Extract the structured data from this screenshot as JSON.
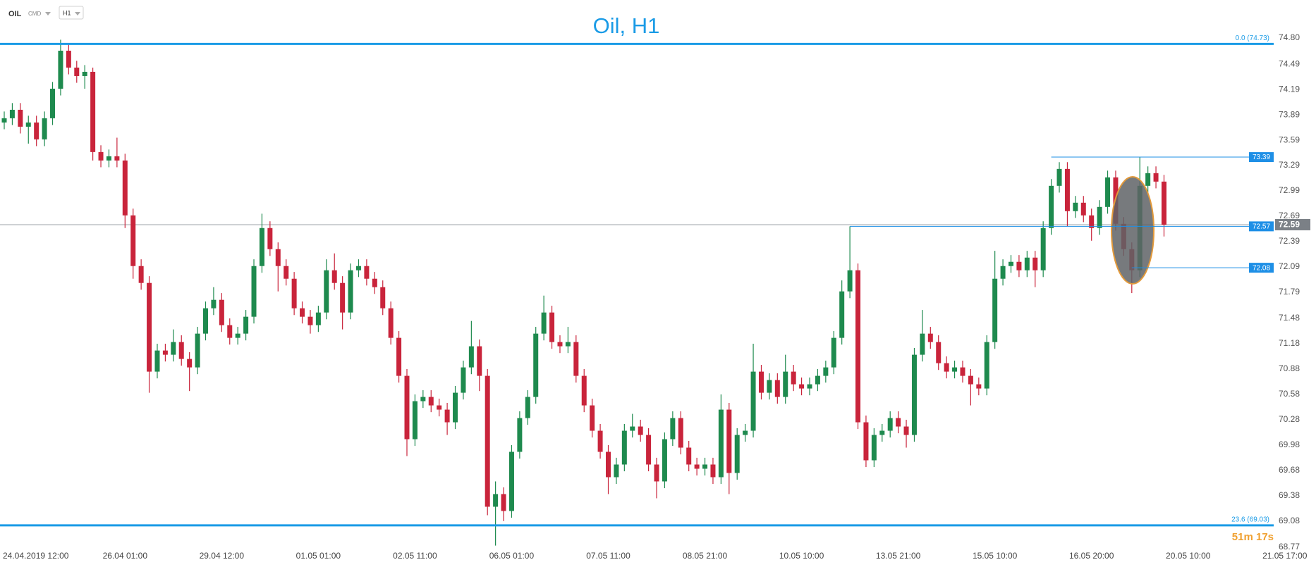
{
  "chart_data": {
    "type": "candlestick",
    "title": "Oil, H1",
    "symbol": "OIL",
    "symbol_type": "CMD",
    "timeframe": "H1",
    "up_color": "#1e8a4e",
    "down_color": "#c9243b",
    "grid": false,
    "ylim": [
      68.77,
      74.8
    ],
    "yticks": [
      {
        "value": 74.8,
        "label": "74.80"
      },
      74.49,
      74.19,
      73.89,
      73.59,
      73.29,
      72.99,
      72.69,
      72.39,
      72.09,
      71.79,
      71.48,
      71.18,
      70.88,
      70.58,
      70.28,
      69.98,
      69.68,
      69.38,
      69.08,
      68.77
    ],
    "levels": [
      {
        "value": 74.73,
        "label": "0.0 (74.73)"
      },
      {
        "value": 69.03,
        "label": "23.6 (69.03)"
      }
    ],
    "level_color": "#1a9be6",
    "price_markers": [
      73.39,
      72.57,
      72.08
    ],
    "current_price": 72.59,
    "countdown": "51m 17s",
    "categories": [
      null,
      null,
      null,
      "24.04.2019 12:00",
      null,
      null,
      null,
      null,
      null,
      null,
      null,
      null,
      null,
      null,
      null,
      "26.04 01:00",
      null,
      null,
      null,
      null,
      null,
      null,
      null,
      null,
      null,
      null,
      null,
      "29.04 12:00",
      null,
      null,
      null,
      null,
      null,
      null,
      null,
      null,
      null,
      null,
      null,
      "01.05 01:00",
      null,
      null,
      null,
      null,
      null,
      null,
      null,
      null,
      null,
      null,
      null,
      "02.05 11:00",
      null,
      null,
      null,
      null,
      null,
      null,
      null,
      null,
      null,
      null,
      null,
      "06.05 01:00",
      null,
      null,
      null,
      null,
      null,
      null,
      null,
      null,
      null,
      null,
      null,
      "07.05 11:00",
      null,
      null,
      null,
      null,
      null,
      null,
      null,
      null,
      null,
      null,
      null,
      "08.05 21:00",
      null,
      null,
      null,
      null,
      null,
      null,
      null,
      null,
      null,
      null,
      null,
      "10.05 10:00",
      null,
      null,
      null,
      null,
      null,
      null,
      null,
      null,
      null,
      null,
      null,
      "13.05 21:00",
      null,
      null,
      null,
      null,
      null,
      null,
      null,
      null,
      null,
      null,
      null,
      "15.05 10:00",
      null,
      null,
      null,
      null,
      null,
      null,
      null,
      null,
      null,
      null,
      null,
      "16.05 20:00",
      null,
      null,
      null,
      null,
      null,
      null,
      null,
      null,
      null,
      null,
      null,
      "20.05 10:00",
      null,
      null,
      null,
      null,
      null,
      null,
      null,
      null,
      null,
      null,
      null,
      "21.05 17:00"
    ],
    "open": [
      73.8,
      73.85,
      73.95,
      73.75,
      73.8,
      73.6,
      73.85,
      74.2,
      74.65,
      74.45,
      74.35,
      74.4,
      73.45,
      73.35,
      73.4,
      73.35,
      72.7,
      72.1,
      71.9,
      70.85,
      71.1,
      71.05,
      71.2,
      71.0,
      70.9,
      71.3,
      71.6,
      71.7,
      71.4,
      71.25,
      71.3,
      71.5,
      72.1,
      72.55,
      72.3,
      72.1,
      71.95,
      71.6,
      71.5,
      71.4,
      71.55,
      72.05,
      71.9,
      71.55,
      72.05,
      72.1,
      71.95,
      71.85,
      71.6,
      71.25,
      70.8,
      70.05,
      70.5,
      70.55,
      70.45,
      70.4,
      70.25,
      70.6,
      70.9,
      71.15,
      70.8,
      69.25,
      69.4,
      69.2,
      69.9,
      70.3,
      70.55,
      71.3,
      71.55,
      71.2,
      71.15,
      71.2,
      70.8,
      70.45,
      70.15,
      69.9,
      69.6,
      69.75,
      70.15,
      70.2,
      70.1,
      69.75,
      69.55,
      70.05,
      70.3,
      69.95,
      69.75,
      69.7,
      69.75,
      69.6,
      70.4,
      69.65,
      70.1,
      70.15,
      70.85,
      70.6,
      70.75,
      70.55,
      70.85,
      70.7,
      70.65,
      70.7,
      70.8,
      70.9,
      71.25,
      71.8,
      72.05,
      70.25,
      69.8,
      70.1,
      70.15,
      70.3,
      70.2,
      70.1,
      71.05,
      71.3,
      71.2,
      70.95,
      70.85,
      70.9,
      70.8,
      70.7,
      70.65,
      71.2,
      71.95,
      72.1,
      72.15,
      72.05,
      72.2,
      72.05,
      72.55,
      73.05,
      73.25,
      72.75,
      72.85,
      72.7,
      72.55,
      72.8,
      73.15,
      72.6,
      72.3,
      72.05,
      73.05,
      73.2,
      73.1,
      null,
      null,
      null,
      null,
      null,
      null,
      null,
      null,
      null,
      null,
      null,
      null,
      null,
      null,
      null
    ],
    "high": [
      73.93,
      74.03,
      74.03,
      73.88,
      73.88,
      73.93,
      74.28,
      74.78,
      74.73,
      74.53,
      74.48,
      74.45,
      73.53,
      73.48,
      73.62,
      73.43,
      72.78,
      72.18,
      71.98,
      71.18,
      71.18,
      71.35,
      71.28,
      71.08,
      71.38,
      71.68,
      71.85,
      71.78,
      71.48,
      71.38,
      71.58,
      72.18,
      72.72,
      72.63,
      72.38,
      72.18,
      72.03,
      71.68,
      71.58,
      71.63,
      72.18,
      72.25,
      71.98,
      72.13,
      72.18,
      72.18,
      72.03,
      71.93,
      71.68,
      71.33,
      70.88,
      70.58,
      70.63,
      70.63,
      70.53,
      70.48,
      70.68,
      70.98,
      71.45,
      71.23,
      70.88,
      69.55,
      69.48,
      69.98,
      70.38,
      70.63,
      71.38,
      71.75,
      71.63,
      71.28,
      71.38,
      71.28,
      70.88,
      70.53,
      70.23,
      69.98,
      69.83,
      70.23,
      70.35,
      70.28,
      70.18,
      69.83,
      70.13,
      70.38,
      70.38,
      70.03,
      69.83,
      69.83,
      69.83,
      70.58,
      70.48,
      70.18,
      70.23,
      71.18,
      70.93,
      70.83,
      70.83,
      71.05,
      70.93,
      70.78,
      70.78,
      70.88,
      70.98,
      71.33,
      71.93,
      72.57,
      72.13,
      70.33,
      70.18,
      70.23,
      70.38,
      70.38,
      70.28,
      71.13,
      71.58,
      71.38,
      71.28,
      71.03,
      70.98,
      70.98,
      70.88,
      70.78,
      71.28,
      72.28,
      72.18,
      72.23,
      72.23,
      72.28,
      72.28,
      72.63,
      73.13,
      73.33,
      73.33,
      72.93,
      72.93,
      72.78,
      72.88,
      73.23,
      73.23,
      72.68,
      72.38,
      73.39,
      73.28,
      73.28,
      73.18,
      null,
      null,
      null,
      null,
      null,
      null,
      null,
      null,
      null,
      null,
      null,
      null,
      null,
      null,
      null
    ],
    "low": [
      73.72,
      73.77,
      73.67,
      73.55,
      73.52,
      73.52,
      73.77,
      74.12,
      74.37,
      74.27,
      74.2,
      73.35,
      73.27,
      73.27,
      73.27,
      72.55,
      71.95,
      71.82,
      70.6,
      70.77,
      70.97,
      70.97,
      70.92,
      70.62,
      70.82,
      71.22,
      71.52,
      71.32,
      71.17,
      71.17,
      71.22,
      71.42,
      72.02,
      72.22,
      71.8,
      71.87,
      71.52,
      71.42,
      71.3,
      71.32,
      71.47,
      71.82,
      71.35,
      71.47,
      71.97,
      71.87,
      71.77,
      71.52,
      71.17,
      70.72,
      69.85,
      69.97,
      70.42,
      70.37,
      70.32,
      70.1,
      70.17,
      70.52,
      70.82,
      70.62,
      69.15,
      68.79,
      69.08,
      69.12,
      69.82,
      70.22,
      70.47,
      71.22,
      71.12,
      71.07,
      71.07,
      70.72,
      70.37,
      70.07,
      69.82,
      69.4,
      69.52,
      69.67,
      70.07,
      70.02,
      69.67,
      69.35,
      69.47,
      69.97,
      69.87,
      69.67,
      69.62,
      69.62,
      69.52,
      69.52,
      69.4,
      69.57,
      70.02,
      70.07,
      70.52,
      70.52,
      70.47,
      70.47,
      70.62,
      70.57,
      70.57,
      70.62,
      70.72,
      70.82,
      71.17,
      71.72,
      70.17,
      69.72,
      69.72,
      70.02,
      70.07,
      70.12,
      69.95,
      70.02,
      70.97,
      71.12,
      70.87,
      70.77,
      70.77,
      70.72,
      70.45,
      70.57,
      70.57,
      71.12,
      71.87,
      72.02,
      71.97,
      71.97,
      71.85,
      71.97,
      72.47,
      72.97,
      72.57,
      72.67,
      72.62,
      72.4,
      72.47,
      72.72,
      72.52,
      72.22,
      71.78,
      71.97,
      72.97,
      73.02,
      72.45,
      null,
      null,
      null,
      null,
      null,
      null,
      null,
      null,
      null,
      null,
      null,
      null,
      null,
      null,
      null
    ],
    "close": [
      73.85,
      73.95,
      73.75,
      73.8,
      73.6,
      73.85,
      74.2,
      74.65,
      74.45,
      74.35,
      74.4,
      73.45,
      73.35,
      73.4,
      73.35,
      72.7,
      72.1,
      71.9,
      70.85,
      71.1,
      71.05,
      71.2,
      71.0,
      70.9,
      71.3,
      71.6,
      71.7,
      71.4,
      71.25,
      71.3,
      71.5,
      72.1,
      72.55,
      72.3,
      72.1,
      71.95,
      71.6,
      71.5,
      71.4,
      71.55,
      72.05,
      71.9,
      71.55,
      72.05,
      72.1,
      71.95,
      71.85,
      71.6,
      71.25,
      70.8,
      70.05,
      70.5,
      70.55,
      70.45,
      70.4,
      70.25,
      70.6,
      70.9,
      71.15,
      70.8,
      69.25,
      69.4,
      69.2,
      69.9,
      70.3,
      70.55,
      71.3,
      71.55,
      71.2,
      71.15,
      71.2,
      70.8,
      70.45,
      70.15,
      69.9,
      69.6,
      69.75,
      70.15,
      70.2,
      70.1,
      69.75,
      69.55,
      70.05,
      70.3,
      69.95,
      69.75,
      69.7,
      69.75,
      69.6,
      70.4,
      69.65,
      70.1,
      70.15,
      70.85,
      70.6,
      70.75,
      70.55,
      70.85,
      70.7,
      70.65,
      70.7,
      70.8,
      70.9,
      71.25,
      71.8,
      72.05,
      70.25,
      69.8,
      70.1,
      70.15,
      70.3,
      70.2,
      70.1,
      71.05,
      71.3,
      71.2,
      70.95,
      70.85,
      70.9,
      70.8,
      70.7,
      70.65,
      71.2,
      71.95,
      72.1,
      72.15,
      72.05,
      72.2,
      72.05,
      72.55,
      73.05,
      73.25,
      72.75,
      72.85,
      72.7,
      72.55,
      72.8,
      73.15,
      72.6,
      72.3,
      72.05,
      73.05,
      73.2,
      73.1,
      72.59,
      null,
      null,
      null,
      null,
      null,
      null,
      null,
      null,
      null,
      null,
      null,
      null,
      null,
      null,
      null
    ]
  }
}
